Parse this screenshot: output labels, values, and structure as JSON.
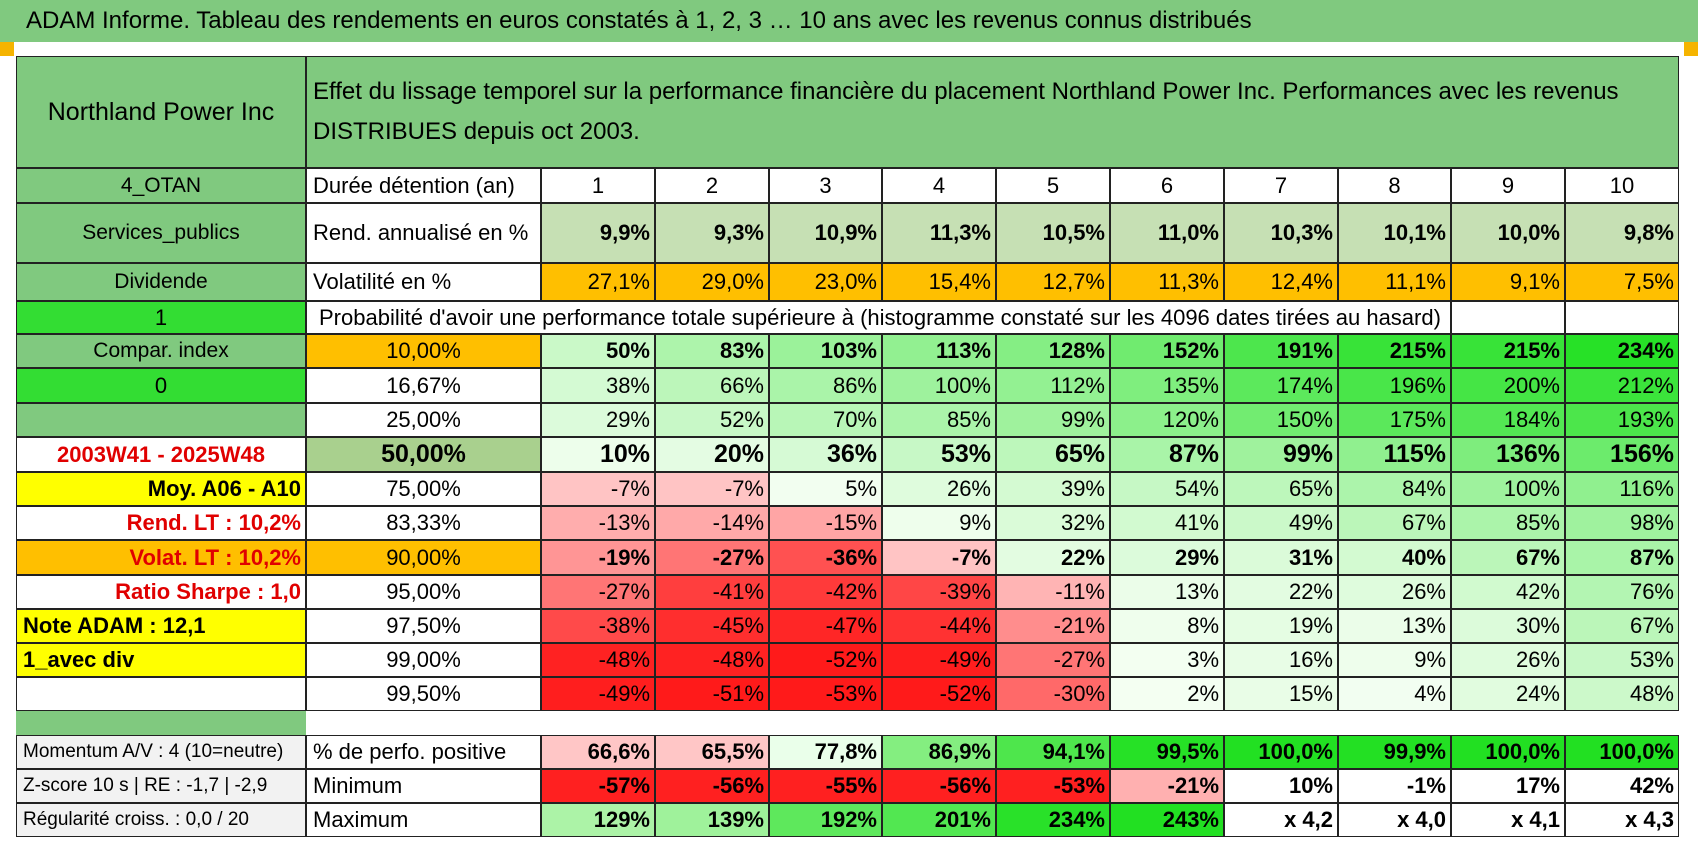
{
  "banner": "ADAM Informe. Tableau des rendements en euros constatés à 1, 2, 3 … 10 ans avec les revenus connus distribués",
  "company": "Northland Power Inc",
  "description": "Effet du lissage temporel sur la performance financière du placement Northland Power Inc. Performances avec les revenus DISTRIBUES depuis oct 2003.",
  "left_labels": {
    "otan": "4_OTAN",
    "sector": "Services_publics",
    "dividende": "Dividende",
    "one": "1",
    "compar": "Compar. index",
    "zero": "0",
    "period": "2003W41 - 2025W48",
    "moy": "Moy. A06 - A10",
    "rend_lt": "Rend. LT :    10,2%",
    "volat_lt": "Volat. LT :    10,2%",
    "sharpe": "Ratio Sharpe :    1,0",
    "note": "Note ADAM : 12,1",
    "avec_div": "1_avec div",
    "momentum": "Momentum A/V : 4 (10=neutre)",
    "zscore": "Z-score 10 s | RE : -1,7 | -2,9",
    "regularite": "Régularité croiss. : 0,0 / 20"
  },
  "row_labels": {
    "duree": "Durée détention (an)",
    "rend": "Rend. annualisé en %",
    "vol": "Volatilité en %",
    "prob": "Probabilité d'avoir une performance totale supérieure à (histogramme constaté sur les 4096 dates tirées au hasard)",
    "pos": "% de perfo. positive",
    "min": "Minimum",
    "max": "Maximum"
  },
  "years": [
    "1",
    "2",
    "3",
    "4",
    "5",
    "6",
    "7",
    "8",
    "9",
    "10"
  ],
  "rend": [
    "9,9%",
    "9,3%",
    "10,9%",
    "11,3%",
    "10,5%",
    "11,0%",
    "10,3%",
    "10,1%",
    "10,0%",
    "9,8%"
  ],
  "vol": [
    "27,1%",
    "29,0%",
    "23,0%",
    "15,4%",
    "12,7%",
    "11,3%",
    "12,4%",
    "11,1%",
    "9,1%",
    "7,5%"
  ],
  "percentiles": [
    {
      "p": "10,00%",
      "vals": [
        "50%",
        "83%",
        "103%",
        "113%",
        "128%",
        "152%",
        "191%",
        "215%",
        "215%",
        "234%"
      ]
    },
    {
      "p": "16,67%",
      "vals": [
        "38%",
        "66%",
        "86%",
        "100%",
        "112%",
        "135%",
        "174%",
        "196%",
        "200%",
        "212%"
      ]
    },
    {
      "p": "25,00%",
      "vals": [
        "29%",
        "52%",
        "70%",
        "85%",
        "99%",
        "120%",
        "150%",
        "175%",
        "184%",
        "193%"
      ]
    },
    {
      "p": "50,00%",
      "vals": [
        "10%",
        "20%",
        "36%",
        "53%",
        "65%",
        "87%",
        "99%",
        "115%",
        "136%",
        "156%"
      ]
    },
    {
      "p": "75,00%",
      "vals": [
        "-7%",
        "-7%",
        "5%",
        "26%",
        "39%",
        "54%",
        "65%",
        "84%",
        "100%",
        "116%"
      ]
    },
    {
      "p": "83,33%",
      "vals": [
        "-13%",
        "-14%",
        "-15%",
        "9%",
        "32%",
        "41%",
        "49%",
        "67%",
        "85%",
        "98%"
      ]
    },
    {
      "p": "90,00%",
      "vals": [
        "-19%",
        "-27%",
        "-36%",
        "-7%",
        "22%",
        "29%",
        "31%",
        "40%",
        "67%",
        "87%"
      ]
    },
    {
      "p": "95,00%",
      "vals": [
        "-27%",
        "-41%",
        "-42%",
        "-39%",
        "-11%",
        "13%",
        "22%",
        "26%",
        "42%",
        "76%"
      ]
    },
    {
      "p": "97,50%",
      "vals": [
        "-38%",
        "-45%",
        "-47%",
        "-44%",
        "-21%",
        "8%",
        "19%",
        "13%",
        "30%",
        "67%"
      ]
    },
    {
      "p": "99,00%",
      "vals": [
        "-48%",
        "-48%",
        "-52%",
        "-49%",
        "-27%",
        "3%",
        "16%",
        "9%",
        "26%",
        "53%"
      ]
    },
    {
      "p": "99,50%",
      "vals": [
        "-49%",
        "-51%",
        "-53%",
        "-52%",
        "-30%",
        "2%",
        "15%",
        "4%",
        "24%",
        "48%"
      ]
    }
  ],
  "positive": [
    "66,6%",
    "65,5%",
    "77,8%",
    "86,9%",
    "94,1%",
    "99,5%",
    "100,0%",
    "99,9%",
    "100,0%",
    "100,0%"
  ],
  "minimum": [
    "-57%",
    "-56%",
    "-55%",
    "-56%",
    "-53%",
    "-21%",
    "10%",
    "-1%",
    "17%",
    "42%"
  ],
  "maximum": [
    "129%",
    "139%",
    "192%",
    "201%",
    "234%",
    "243%",
    "x 4,2",
    "x 4,0",
    "x 4,1",
    "x 4,3"
  ],
  "colors": {
    "header_green": "#80c97f",
    "bright_green": "#33dd33",
    "yellow": "#ffff00",
    "orange": "#ffbf00",
    "sage": "#a9d08e",
    "label_red": "#e00000"
  }
}
